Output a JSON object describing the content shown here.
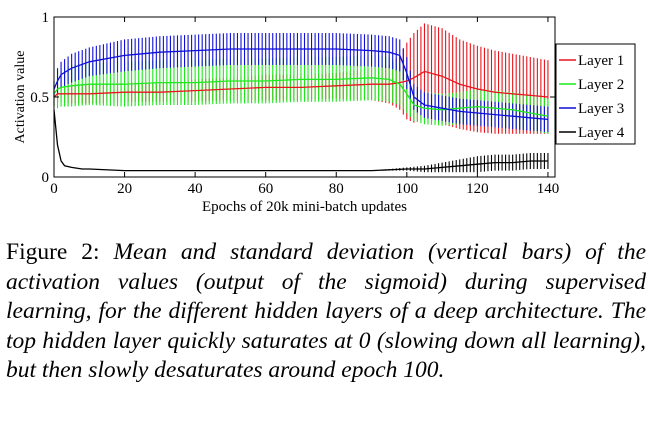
{
  "chart_data": {
    "type": "line",
    "title": "",
    "xlabel": "Epochs of 20k mini-batch updates",
    "ylabel": "Activation value",
    "xlim": [
      0,
      142
    ],
    "ylim": [
      0,
      1
    ],
    "xticks": [
      0,
      20,
      40,
      60,
      80,
      100,
      120,
      140
    ],
    "yticks": [
      0,
      0.5,
      1
    ],
    "xtick_labels": [
      "0",
      "20",
      "40",
      "60",
      "80",
      "100",
      "120",
      "140"
    ],
    "ytick_labels": [
      "0",
      "0.5",
      "1"
    ],
    "grid": false,
    "legend_position": "right",
    "error_bars": "vertical bars show standard deviation",
    "series": [
      {
        "name": "Layer 1",
        "color": "#e8141c",
        "x": [
          0,
          1,
          2,
          5,
          10,
          20,
          30,
          40,
          50,
          60,
          70,
          80,
          90,
          95,
          98,
          100,
          102,
          105,
          110,
          115,
          120,
          125,
          130,
          135,
          140
        ],
        "y": [
          0.5,
          0.52,
          0.52,
          0.52,
          0.52,
          0.53,
          0.53,
          0.54,
          0.55,
          0.56,
          0.56,
          0.57,
          0.58,
          0.58,
          0.59,
          0.6,
          0.62,
          0.66,
          0.63,
          0.58,
          0.55,
          0.53,
          0.52,
          0.51,
          0.5
        ],
        "std": [
          0.05,
          0.05,
          0.05,
          0.06,
          0.06,
          0.06,
          0.06,
          0.07,
          0.07,
          0.08,
          0.08,
          0.08,
          0.1,
          0.12,
          0.17,
          0.24,
          0.28,
          0.3,
          0.3,
          0.28,
          0.27,
          0.26,
          0.25,
          0.24,
          0.23
        ]
      },
      {
        "name": "Layer 2",
        "color": "#1ee81e",
        "x": [
          0,
          1,
          2,
          5,
          10,
          20,
          30,
          40,
          50,
          60,
          70,
          80,
          90,
          95,
          98,
          100,
          102,
          105,
          110,
          115,
          120,
          125,
          130,
          135,
          140
        ],
        "y": [
          0.52,
          0.55,
          0.56,
          0.57,
          0.58,
          0.58,
          0.59,
          0.59,
          0.6,
          0.6,
          0.61,
          0.61,
          0.62,
          0.61,
          0.58,
          0.52,
          0.45,
          0.43,
          0.42,
          0.43,
          0.44,
          0.43,
          0.42,
          0.4,
          0.38
        ],
        "std": [
          0.08,
          0.12,
          0.12,
          0.13,
          0.13,
          0.14,
          0.14,
          0.14,
          0.14,
          0.14,
          0.14,
          0.14,
          0.14,
          0.14,
          0.13,
          0.12,
          0.1,
          0.1,
          0.1,
          0.1,
          0.11,
          0.11,
          0.11,
          0.11,
          0.11
        ]
      },
      {
        "name": "Layer 3",
        "color": "#0f0fd8",
        "x": [
          0,
          1,
          2,
          5,
          10,
          20,
          30,
          40,
          50,
          60,
          70,
          80,
          90,
          95,
          98,
          100,
          102,
          105,
          110,
          115,
          120,
          125,
          130,
          135,
          140
        ],
        "y": [
          0.55,
          0.6,
          0.64,
          0.68,
          0.72,
          0.76,
          0.78,
          0.79,
          0.8,
          0.8,
          0.8,
          0.8,
          0.79,
          0.78,
          0.76,
          0.65,
          0.5,
          0.45,
          0.43,
          0.41,
          0.4,
          0.39,
          0.38,
          0.37,
          0.36
        ],
        "std": [
          0.05,
          0.08,
          0.08,
          0.09,
          0.09,
          0.1,
          0.1,
          0.1,
          0.1,
          0.1,
          0.1,
          0.1,
          0.1,
          0.1,
          0.1,
          0.1,
          0.08,
          0.08,
          0.08,
          0.08,
          0.08,
          0.08,
          0.08,
          0.08,
          0.08
        ]
      },
      {
        "name": "Layer 4",
        "color": "#000000",
        "x": [
          0,
          1,
          2,
          3,
          5,
          8,
          10,
          20,
          40,
          60,
          80,
          90,
          100,
          105,
          110,
          115,
          120,
          125,
          130,
          135,
          140
        ],
        "y": [
          0.42,
          0.2,
          0.1,
          0.07,
          0.06,
          0.05,
          0.05,
          0.04,
          0.04,
          0.04,
          0.04,
          0.04,
          0.05,
          0.05,
          0.06,
          0.07,
          0.08,
          0.09,
          0.09,
          0.1,
          0.1
        ],
        "std": [
          0.0,
          0.0,
          0.0,
          0.0,
          0.0,
          0.0,
          0.0,
          0.0,
          0.0,
          0.0,
          0.0,
          0.0,
          0.01,
          0.02,
          0.03,
          0.04,
          0.05,
          0.05,
          0.05,
          0.05,
          0.05
        ]
      }
    ]
  },
  "caption": {
    "label": "Figure 2:",
    "text": "Mean and standard deviation (vertical bars) of the activation values (output of the sigmoid) during supervised learning, for the different hidden layers of a deep architecture. The top hidden layer quickly saturates at 0 (slowing down all learning), but then slowly desaturates around epoch 100."
  }
}
